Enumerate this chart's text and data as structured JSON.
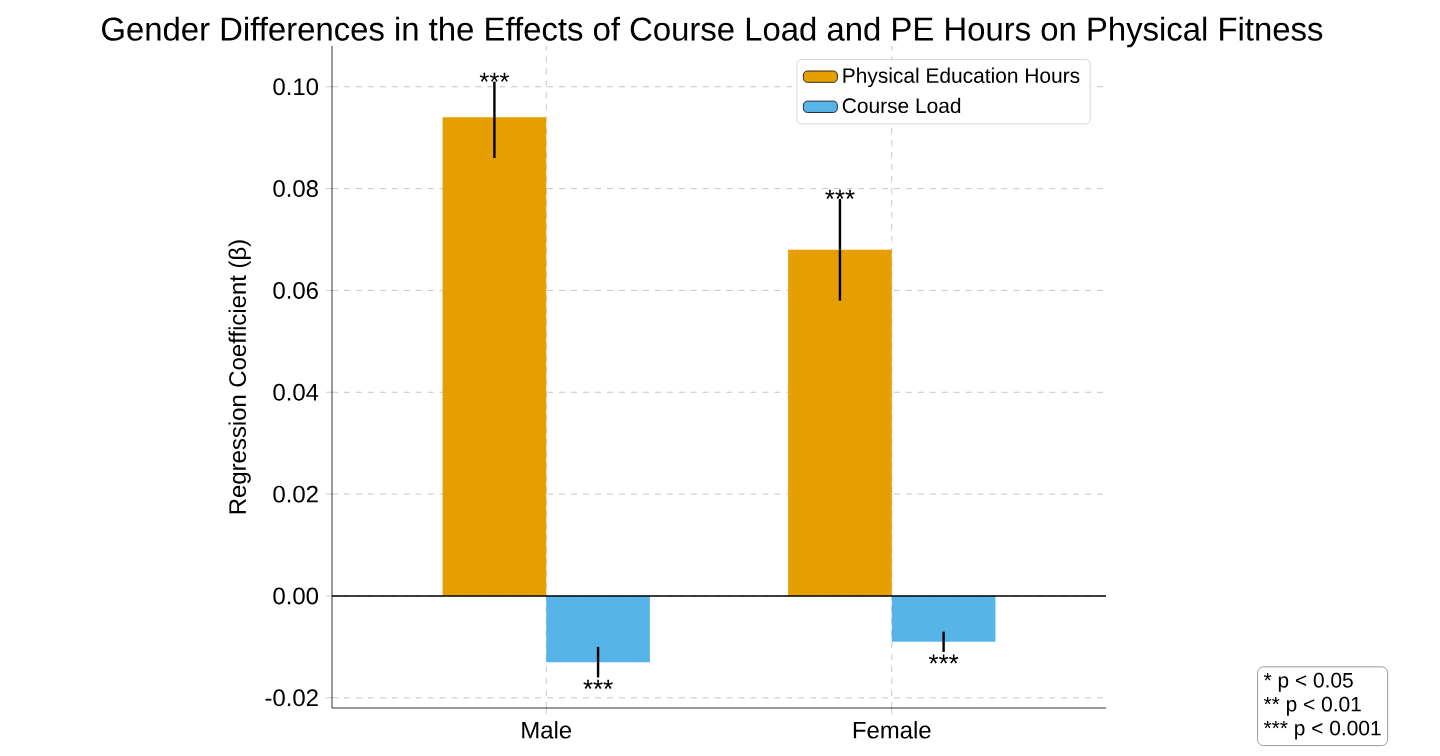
{
  "chart_data": {
    "type": "bar",
    "title": "Gender Differences in the Effects of Course Load and PE Hours on Physical Fitness",
    "ylabel": "Regression Coefficient (β)",
    "categories": [
      "Male",
      "Female"
    ],
    "series": [
      {
        "name": "Physical Education Hours",
        "color": "#e69f00",
        "values": [
          0.094,
          0.068
        ],
        "errors": [
          [
            0.086,
            0.101
          ],
          [
            0.058,
            0.078
          ]
        ],
        "value_labels": [
          "***",
          "***"
        ]
      },
      {
        "name": "Course Load",
        "color": "#56b4e9",
        "values": [
          -0.013,
          -0.009
        ],
        "errors": [
          [
            -0.016,
            -0.01
          ],
          [
            -0.011,
            -0.007
          ]
        ],
        "value_labels": [
          "***",
          "***"
        ]
      }
    ],
    "ylim": [
      -0.022,
      0.108
    ],
    "yticks": [
      {
        "value": -0.02,
        "label": "-0.02"
      },
      {
        "value": 0,
        "label": "0.00"
      },
      {
        "value": 0.02,
        "label": "0.02"
      },
      {
        "value": 0.04,
        "label": "0.04"
      },
      {
        "value": 0.06,
        "label": "0.06"
      },
      {
        "value": 0.08,
        "label": "0.08"
      },
      {
        "value": 0.1,
        "label": "0.10"
      }
    ],
    "grid": true,
    "legend": "top right",
    "annotations": [
      "* p < 0.05",
      "** p < 0.01",
      "*** p < 0.001"
    ]
  }
}
